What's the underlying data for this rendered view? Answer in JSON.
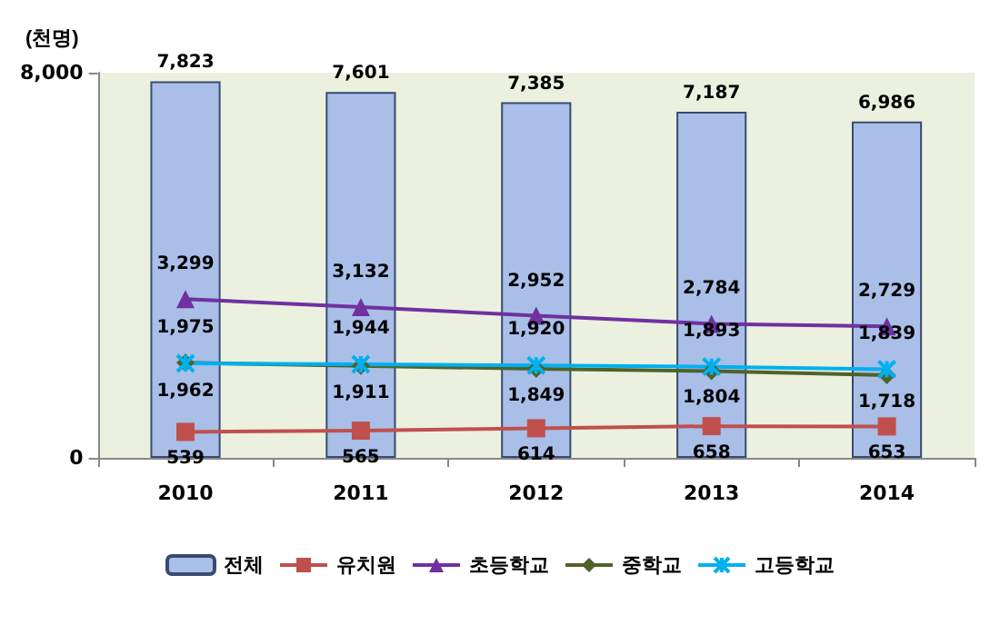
{
  "chart_data": {
    "type": "bar",
    "ylabel": "(천명)",
    "categories": [
      "2010",
      "2011",
      "2012",
      "2013",
      "2014"
    ],
    "series": [
      {
        "name": "전체",
        "color": "#a9bfe8",
        "values": [
          7823,
          7601,
          7385,
          7187,
          6986
        ],
        "value_labels": [
          "7,823",
          "7,601",
          "7,385",
          "7,187",
          "6,986"
        ]
      },
      {
        "name": "유치원",
        "type": "line",
        "color": "#c0504d",
        "marker": "square",
        "values": [
          539,
          565,
          614,
          658,
          653
        ],
        "value_labels": [
          "539",
          "565",
          "614",
          "658",
          "653"
        ]
      },
      {
        "name": "초등학교",
        "type": "line",
        "color": "#7030a0",
        "marker": "triangle",
        "values": [
          3299,
          3132,
          2952,
          2784,
          2729
        ],
        "value_labels": [
          "3,299",
          "3,132",
          "2,952",
          "2,784",
          "2,729"
        ]
      },
      {
        "name": "중학교",
        "type": "line",
        "color": "#4f6228",
        "marker": "diamond",
        "values": [
          1975,
          1911,
          1849,
          1804,
          1718
        ],
        "value_labels": [
          "1,975",
          "1,911",
          "1,849",
          "1,804",
          "1,718"
        ]
      },
      {
        "name": "고등학교",
        "type": "line",
        "color": "#00b0f0",
        "marker": "cross",
        "values": [
          1962,
          1944,
          1920,
          1893,
          1839
        ],
        "value_labels": [
          "1,962",
          "1,944",
          "1,920",
          "1,893",
          "1,839"
        ]
      }
    ],
    "ylim": [
      0,
      8000
    ],
    "yticks": [
      0,
      {
        "value": 8000,
        "label": "8,000"
      }
    ],
    "legend": "bottom",
    "grid": false
  }
}
